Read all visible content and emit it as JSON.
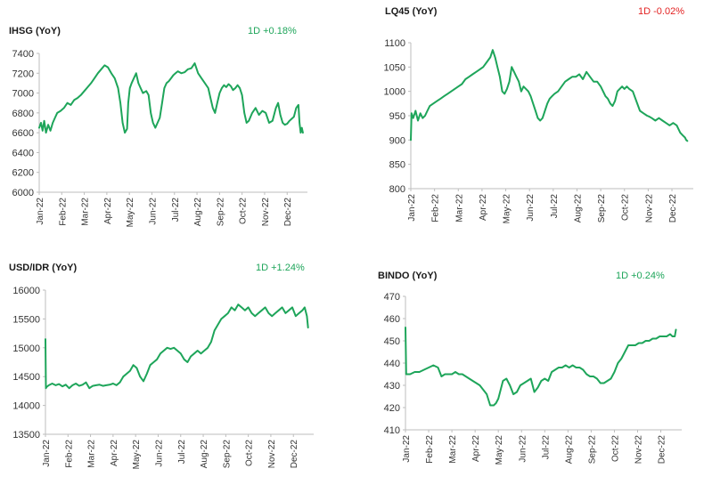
{
  "colors": {
    "line": "#1ea55a",
    "positive": "#1ea55a",
    "negative": "#e32222",
    "axis": "#bdbdbd"
  },
  "chart_data": [
    {
      "type": "line",
      "title": "IHSG (YoY)",
      "change": "1D +0.18%",
      "change_sign": "positive",
      "xlabel": "",
      "ylabel": "",
      "yticks": [
        "7400",
        "7200",
        "7000",
        "6800",
        "6600",
        "6400",
        "6200",
        "6000"
      ],
      "ylim": [
        6000,
        7400
      ],
      "xticks": [
        "Jan-22",
        "Feb-22",
        "Mar-22",
        "Apr-22",
        "May-22",
        "Jun-22",
        "Jul-22",
        "Aug-22",
        "Sep-22",
        "Oct-22",
        "Nov-22",
        "Dec-22"
      ],
      "xlim": [
        0,
        11.9
      ],
      "series": [
        {
          "x": [
            0,
            0.08,
            0.15,
            0.22,
            0.3,
            0.4,
            0.5,
            0.6,
            0.7,
            0.8,
            0.95,
            1.1,
            1.25,
            1.4,
            1.55,
            1.7,
            1.85,
            2.0,
            2.15,
            2.3,
            2.45,
            2.6,
            2.75,
            2.9,
            3.05,
            3.2,
            3.35,
            3.5,
            3.6,
            3.7,
            3.8,
            3.9,
            3.95,
            4.02,
            4.1,
            4.2,
            4.3,
            4.4,
            4.5,
            4.6,
            4.75,
            4.85,
            4.95,
            5.05,
            5.15,
            5.25,
            5.35,
            5.45,
            5.55,
            5.65,
            5.75,
            5.85,
            5.95,
            6.05,
            6.15,
            6.3,
            6.45,
            6.6,
            6.75,
            6.9,
            7.05,
            7.2,
            7.35,
            7.5,
            7.6,
            7.7,
            7.8,
            7.9,
            8.0,
            8.1,
            8.2,
            8.3,
            8.4,
            8.5,
            8.6,
            8.7,
            8.8,
            8.9,
            9.0,
            9.1,
            9.2,
            9.3,
            9.45,
            9.6,
            9.75,
            9.9,
            10.05,
            10.2,
            10.35,
            10.5,
            10.6,
            10.7,
            10.8,
            10.9,
            11.0,
            11.1,
            11.2,
            11.3,
            11.4,
            11.5,
            11.55,
            11.6,
            11.65,
            11.7
          ],
          "values": [
            6650,
            6700,
            6620,
            6720,
            6600,
            6680,
            6620,
            6700,
            6750,
            6800,
            6820,
            6850,
            6900,
            6880,
            6930,
            6950,
            6980,
            7020,
            7060,
            7100,
            7150,
            7200,
            7240,
            7280,
            7260,
            7200,
            7150,
            7050,
            6900,
            6700,
            6600,
            6640,
            6900,
            7050,
            7100,
            7150,
            7200,
            7100,
            7050,
            7000,
            7020,
            6980,
            6800,
            6700,
            6650,
            6700,
            6750,
            6900,
            7050,
            7100,
            7120,
            7150,
            7180,
            7200,
            7220,
            7200,
            7210,
            7240,
            7250,
            7300,
            7200,
            7150,
            7100,
            7050,
            6950,
            6850,
            6800,
            6900,
            7000,
            7050,
            7080,
            7060,
            7090,
            7070,
            7030,
            7050,
            7080,
            7050,
            6980,
            6800,
            6700,
            6720,
            6800,
            6850,
            6780,
            6820,
            6800,
            6700,
            6720,
            6850,
            6900,
            6780,
            6700,
            6680,
            6690,
            6720,
            6740,
            6760,
            6850,
            6880,
            6700,
            6600,
            6650,
            6600
          ]
        }
      ]
    },
    {
      "type": "line",
      "title": "LQ45 (YoY)",
      "change": "1D -0.02%",
      "change_sign": "negative",
      "xlabel": "",
      "ylabel": "",
      "yticks": [
        "1100",
        "1050",
        "1000",
        "950",
        "900",
        "850",
        "800"
      ],
      "ylim": [
        800,
        1100
      ],
      "xticks": [
        "Jan-22",
        "Feb-22",
        "Mar-22",
        "Apr-22",
        "May-22",
        "Jun-22",
        "Jul-22",
        "Aug-22",
        "Sep-22",
        "Oct-22",
        "Nov-22",
        "Dec-22"
      ],
      "xlim": [
        0,
        11.9
      ],
      "series": [
        {
          "x": [
            0,
            0.03,
            0.1,
            0.2,
            0.3,
            0.4,
            0.5,
            0.6,
            0.7,
            0.8,
            0.95,
            1.1,
            1.25,
            1.4,
            1.55,
            1.7,
            1.85,
            2.0,
            2.15,
            2.3,
            2.45,
            2.6,
            2.75,
            2.9,
            3.05,
            3.2,
            3.35,
            3.45,
            3.55,
            3.65,
            3.75,
            3.85,
            3.95,
            4.05,
            4.15,
            4.25,
            4.35,
            4.45,
            4.55,
            4.65,
            4.75,
            4.85,
            4.95,
            5.05,
            5.15,
            5.25,
            5.35,
            5.45,
            5.55,
            5.65,
            5.75,
            5.85,
            5.95,
            6.05,
            6.2,
            6.35,
            6.5,
            6.65,
            6.8,
            6.95,
            7.1,
            7.25,
            7.4,
            7.55,
            7.7,
            7.85,
            8.0,
            8.1,
            8.2,
            8.3,
            8.4,
            8.5,
            8.6,
            8.7,
            8.8,
            8.9,
            9.0,
            9.1,
            9.2,
            9.35,
            9.5,
            9.65,
            9.8,
            9.95,
            10.05,
            10.15,
            10.3,
            10.45,
            10.6,
            10.75,
            10.9,
            11.05,
            11.2,
            11.35,
            11.45,
            11.55,
            11.6,
            11.65
          ],
          "values": [
            900,
            955,
            945,
            960,
            940,
            955,
            945,
            950,
            960,
            970,
            975,
            980,
            985,
            990,
            995,
            1000,
            1005,
            1010,
            1015,
            1025,
            1030,
            1035,
            1040,
            1045,
            1050,
            1060,
            1070,
            1085,
            1070,
            1050,
            1030,
            1000,
            995,
            1005,
            1020,
            1050,
            1040,
            1030,
            1020,
            1000,
            1010,
            1005,
            1000,
            990,
            975,
            960,
            945,
            940,
            945,
            960,
            975,
            985,
            990,
            995,
            1000,
            1010,
            1020,
            1025,
            1030,
            1030,
            1035,
            1025,
            1040,
            1030,
            1020,
            1020,
            1010,
            1000,
            990,
            985,
            975,
            970,
            980,
            1000,
            1005,
            1010,
            1005,
            1010,
            1005,
            1000,
            980,
            960,
            955,
            950,
            948,
            945,
            940,
            945,
            940,
            935,
            930,
            935,
            930,
            915,
            910,
            905,
            900,
            898
          ]
        }
      ]
    },
    {
      "type": "line",
      "title": "USD/IDR (YoY)",
      "change": "1D +1.24%",
      "change_sign": "positive",
      "xlabel": "",
      "ylabel": "",
      "yticks": [
        "16000",
        "15500",
        "15000",
        "14500",
        "14000",
        "13500"
      ],
      "ylim": [
        13500,
        16000
      ],
      "xticks": [
        "Jan-22",
        "Feb-22",
        "Mar-22",
        "Apr-22",
        "May-22",
        "Jun-22",
        "Jul-22",
        "Aug-22",
        "Sep-22",
        "Oct-22",
        "Nov-22",
        "Dec-22"
      ],
      "xlim": [
        0,
        11.9
      ],
      "series": [
        {
          "x": [
            0,
            0.02,
            0.05,
            0.15,
            0.3,
            0.45,
            0.6,
            0.75,
            0.9,
            1.05,
            1.2,
            1.35,
            1.5,
            1.65,
            1.8,
            1.95,
            2.1,
            2.25,
            2.4,
            2.55,
            2.7,
            2.85,
            3.0,
            3.15,
            3.3,
            3.45,
            3.6,
            3.75,
            3.9,
            4.05,
            4.2,
            4.35,
            4.5,
            4.65,
            4.8,
            4.95,
            5.1,
            5.25,
            5.4,
            5.55,
            5.7,
            5.85,
            6.0,
            6.15,
            6.3,
            6.45,
            6.6,
            6.75,
            6.9,
            7.05,
            7.2,
            7.35,
            7.5,
            7.65,
            7.8,
            7.95,
            8.1,
            8.25,
            8.4,
            8.55,
            8.7,
            8.85,
            9.0,
            9.15,
            9.3,
            9.45,
            9.6,
            9.75,
            9.9,
            10.05,
            10.2,
            10.35,
            10.5,
            10.65,
            10.8,
            10.95,
            11.1,
            11.25,
            11.4,
            11.5,
            11.6,
            11.65
          ],
          "values": [
            15150,
            14300,
            14320,
            14350,
            14380,
            14350,
            14370,
            14330,
            14360,
            14300,
            14350,
            14380,
            14340,
            14360,
            14400,
            14300,
            14340,
            14350,
            14360,
            14340,
            14350,
            14360,
            14380,
            14350,
            14400,
            14500,
            14550,
            14600,
            14700,
            14650,
            14500,
            14420,
            14550,
            14700,
            14750,
            14800,
            14900,
            14950,
            15000,
            14980,
            15000,
            14950,
            14900,
            14800,
            14750,
            14850,
            14900,
            14950,
            14900,
            14950,
            15000,
            15100,
            15300,
            15400,
            15500,
            15550,
            15600,
            15700,
            15650,
            15750,
            15700,
            15650,
            15700,
            15600,
            15550,
            15600,
            15650,
            15700,
            15600,
            15550,
            15600,
            15650,
            15700,
            15600,
            15650,
            15700,
            15550,
            15600,
            15650,
            15700,
            15550,
            15350
          ]
        }
      ]
    },
    {
      "type": "line",
      "title": "BINDO (YoY)",
      "change": "1D +0.24%",
      "change_sign": "positive",
      "xlabel": "",
      "ylabel": "",
      "yticks": [
        "470",
        "460",
        "450",
        "440",
        "430",
        "420",
        "410"
      ],
      "ylim": [
        410,
        470
      ],
      "xticks": [
        "Jan-22",
        "Feb-22",
        "Mar-22",
        "Apr-22",
        "May-22",
        "Jun-22",
        "Jul-22",
        "Aug-22",
        "Sep-22",
        "Oct-22",
        "Nov-22",
        "Dec-22"
      ],
      "xlim": [
        0,
        11.9
      ],
      "series": [
        {
          "x": [
            0,
            0.03,
            0.08,
            0.2,
            0.4,
            0.6,
            0.8,
            1.0,
            1.2,
            1.4,
            1.55,
            1.7,
            1.85,
            2.0,
            2.15,
            2.3,
            2.45,
            2.6,
            2.75,
            2.9,
            3.05,
            3.2,
            3.35,
            3.5,
            3.65,
            3.8,
            3.9,
            4.0,
            4.1,
            4.2,
            4.35,
            4.5,
            4.65,
            4.8,
            4.95,
            5.1,
            5.25,
            5.4,
            5.55,
            5.7,
            5.85,
            6.0,
            6.15,
            6.3,
            6.45,
            6.6,
            6.75,
            6.9,
            7.05,
            7.2,
            7.35,
            7.5,
            7.65,
            7.8,
            7.95,
            8.1,
            8.25,
            8.4,
            8.55,
            8.7,
            8.85,
            9.0,
            9.15,
            9.3,
            9.45,
            9.6,
            9.75,
            9.9,
            10.05,
            10.2,
            10.35,
            10.5,
            10.65,
            10.8,
            10.95,
            11.1,
            11.25,
            11.4,
            11.5,
            11.6,
            11.65
          ],
          "values": [
            456,
            435,
            435,
            435,
            436,
            436,
            437,
            438,
            439,
            438,
            434,
            435,
            435,
            435,
            436,
            435,
            435,
            434,
            433,
            432,
            431,
            430,
            428,
            426,
            421,
            421,
            422,
            424,
            428,
            432,
            433,
            430,
            426,
            427,
            430,
            431,
            432,
            433,
            427,
            429,
            432,
            433,
            432,
            436,
            437,
            438,
            438,
            439,
            438,
            439,
            438,
            438,
            437,
            435,
            434,
            434,
            433,
            431,
            431,
            432,
            433,
            436,
            440,
            442,
            445,
            448,
            448,
            448,
            449,
            449,
            450,
            450,
            451,
            451,
            452,
            452,
            452,
            453,
            452,
            452,
            455
          ]
        }
      ]
    }
  ]
}
